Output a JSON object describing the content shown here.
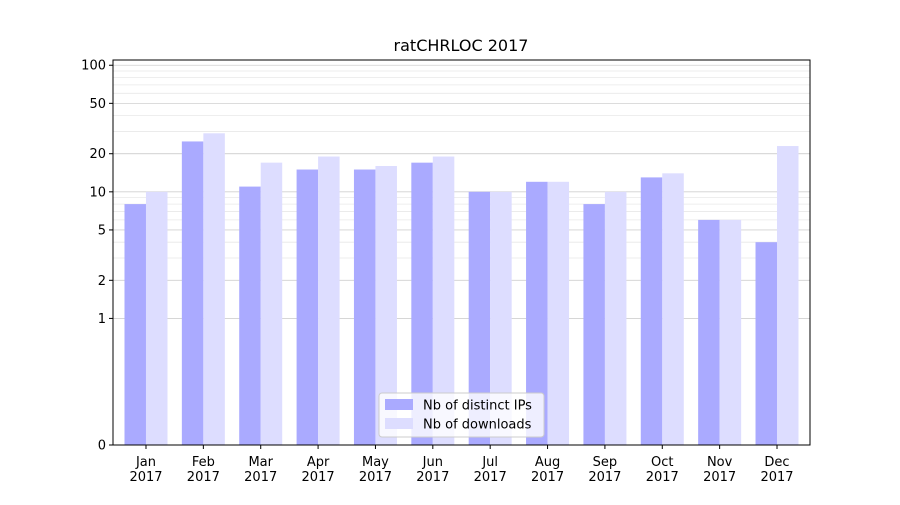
{
  "chart_data": {
    "type": "bar",
    "title": "ratCHRLOC 2017",
    "xlabel": "",
    "ylabel": "",
    "y_scale": "symlog",
    "ylim": [
      0,
      110
    ],
    "y_ticks": [
      0,
      1,
      2,
      5,
      10,
      20,
      50,
      100
    ],
    "y_tick_labels": [
      "0",
      "1",
      "2",
      "5",
      "10",
      "20",
      "50",
      "100"
    ],
    "categories": [
      "Jan\n2017",
      "Feb\n2017",
      "Mar\n2017",
      "Apr\n2017",
      "May\n2017",
      "Jun\n2017",
      "Jul\n2017",
      "Aug\n2017",
      "Sep\n2017",
      "Oct\n2017",
      "Nov\n2017",
      "Dec\n2017"
    ],
    "category_lines": [
      [
        "Jan",
        "2017"
      ],
      [
        "Feb",
        "2017"
      ],
      [
        "Mar",
        "2017"
      ],
      [
        "Apr",
        "2017"
      ],
      [
        "May",
        "2017"
      ],
      [
        "Jun",
        "2017"
      ],
      [
        "Jul",
        "2017"
      ],
      [
        "Aug",
        "2017"
      ],
      [
        "Sep",
        "2017"
      ],
      [
        "Oct",
        "2017"
      ],
      [
        "Nov",
        "2017"
      ],
      [
        "Dec",
        "2017"
      ]
    ],
    "series": [
      {
        "name": "Nb of distinct IPs",
        "color": "#aaaaff",
        "values": [
          8,
          25,
          11,
          15,
          15,
          17,
          10,
          12,
          8,
          13,
          6,
          4
        ]
      },
      {
        "name": "Nb of downloads",
        "color": "#ddddff",
        "values": [
          10,
          29,
          17,
          19,
          16,
          19,
          10,
          12,
          10,
          14,
          6,
          23
        ]
      }
    ],
    "legend_position": "lower center",
    "grid": true
  }
}
